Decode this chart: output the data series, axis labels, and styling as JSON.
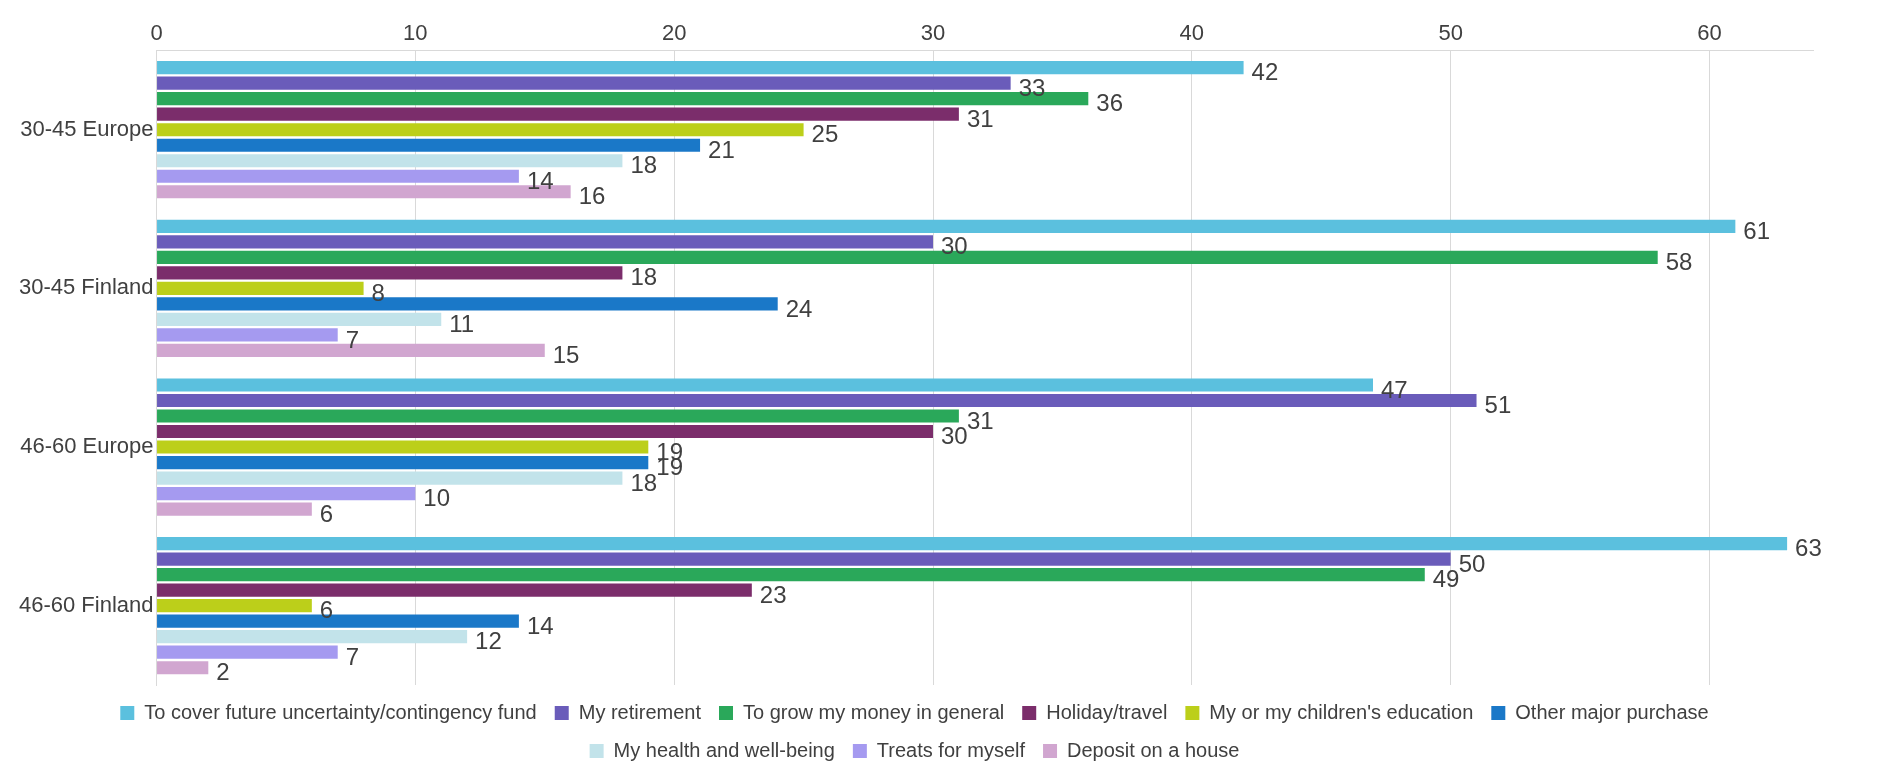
{
  "chart_data": {
    "type": "bar",
    "orientation": "horizontal",
    "categories": [
      "30-45 Europe",
      "30-45 Finland",
      "46-60 Europe",
      "46-60 Finland"
    ],
    "series": [
      {
        "name": "To cover future uncertainty/contingency fund",
        "color": "#5bc0de",
        "values": [
          42,
          61,
          47,
          63
        ]
      },
      {
        "name": "My retirement",
        "color": "#6a5cba",
        "values": [
          33,
          30,
          51,
          50
        ]
      },
      {
        "name": "To grow my money in general",
        "color": "#2aa85a",
        "values": [
          36,
          58,
          31,
          49
        ]
      },
      {
        "name": "Holiday/travel",
        "color": "#7b2d6b",
        "values": [
          31,
          18,
          30,
          23
        ]
      },
      {
        "name": "My or my children's education",
        "color": "#bccf1a",
        "values": [
          25,
          8,
          19,
          6
        ]
      },
      {
        "name": "Other major purchase",
        "color": "#1a78c8",
        "values": [
          21,
          24,
          19,
          14
        ]
      },
      {
        "name": "My health and well-being",
        "color": "#c2e3ea",
        "values": [
          18,
          11,
          18,
          12
        ]
      },
      {
        "name": "Treats for myself",
        "color": "#a59af0",
        "values": [
          14,
          7,
          10,
          7
        ]
      },
      {
        "name": "Deposit on a house",
        "color": "#d1a6d0",
        "values": [
          16,
          15,
          6,
          2
        ]
      }
    ],
    "xlim": [
      0,
      64
    ],
    "xticks": [
      0,
      10,
      20,
      30,
      40,
      50,
      60
    ],
    "grid": "x",
    "legend": "bottom",
    "data_labels": true
  }
}
